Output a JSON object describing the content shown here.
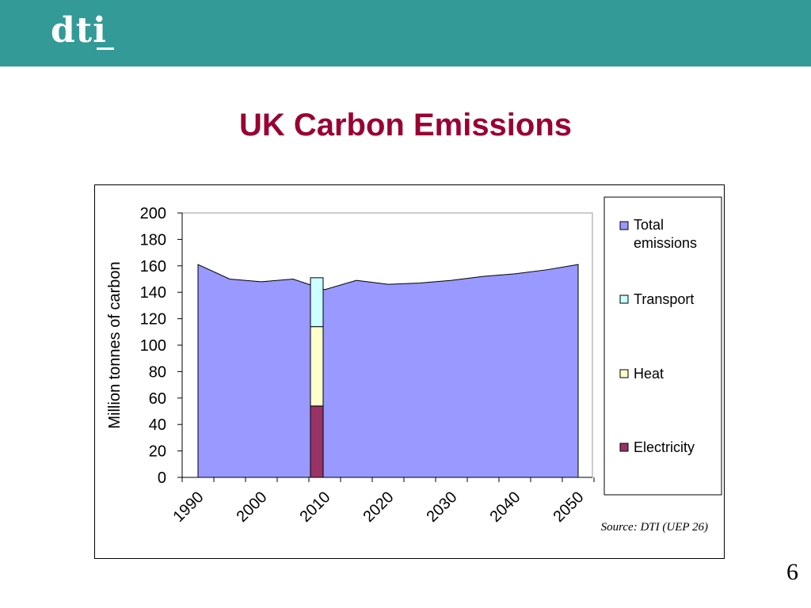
{
  "header": {
    "logo_text": "dti",
    "band_color": "#349a98"
  },
  "slide": {
    "title": "UK Carbon Emissions",
    "page_number": "6"
  },
  "chart_data": {
    "type": "area",
    "title": "",
    "ylabel": "Million tonnes of carbon",
    "xlabel": "",
    "ylim": [
      0,
      200
    ],
    "yticks": [
      "0",
      "20",
      "40",
      "60",
      "80",
      "100",
      "120",
      "140",
      "160",
      "180",
      "200"
    ],
    "xticks": [
      "1990",
      "2000",
      "2010",
      "2020",
      "2030",
      "2040",
      "2050"
    ],
    "x": [
      "1990",
      "1995",
      "2000",
      "2005",
      "2010",
      "2015",
      "2020",
      "2025",
      "2030",
      "2035",
      "2040",
      "2045",
      "2050"
    ],
    "series": [
      {
        "name": "Total emissions",
        "type": "area",
        "color": "#9999ff",
        "values": [
          161,
          150,
          148,
          150,
          142,
          149,
          146,
          147,
          149,
          152,
          154,
          157,
          161
        ]
      },
      {
        "name": "Transport",
        "type": "stacked-bar",
        "color": "#ccffff",
        "category": "2010",
        "value": 37
      },
      {
        "name": "Heat",
        "type": "stacked-bar",
        "color": "#ffffcc",
        "category": "2010",
        "value": 60
      },
      {
        "name": "Electricity",
        "type": "stacked-bar",
        "color": "#993366",
        "category": "2010",
        "value": 54
      }
    ],
    "legend": {
      "placement": "right",
      "entries": [
        "Total emissions",
        "Transport",
        "Heat",
        "Electricity"
      ]
    },
    "source_note": "Source: DTI (UEP 26)",
    "grid": false
  }
}
